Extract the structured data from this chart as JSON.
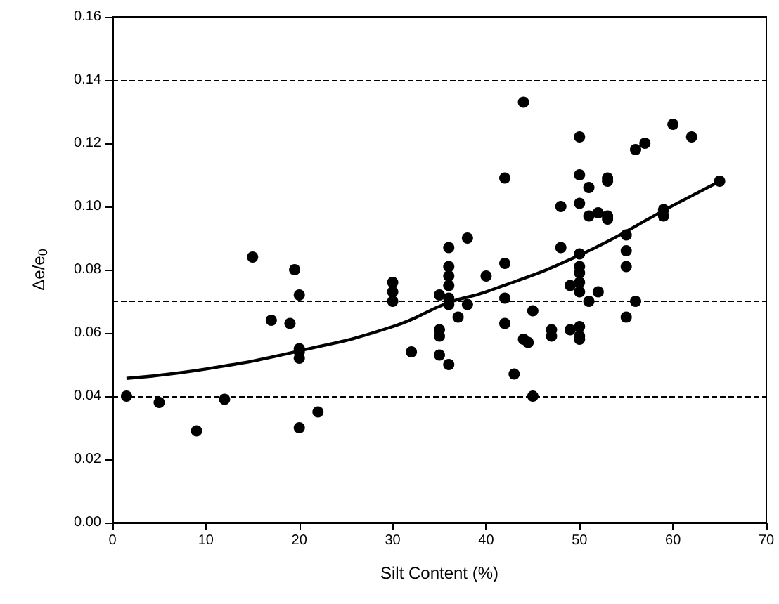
{
  "chart_data": {
    "type": "scatter",
    "xlabel": "Silt Content (%)",
    "ylabel": "Δe/e$_{0}$",
    "xlim": [
      0,
      70
    ],
    "xticks": [
      0,
      10,
      20,
      30,
      40,
      50,
      60,
      70
    ],
    "ylim": [
      0,
      0.16
    ],
    "yticks": [
      {
        "value": 0,
        "label": "0.00"
      },
      {
        "value": 0.02,
        "label": "0.02"
      },
      {
        "value": 0.04,
        "label": "0.04"
      },
      {
        "value": 0.06,
        "label": "0.06"
      },
      {
        "value": 0.08,
        "label": "0.08"
      },
      {
        "value": 0.1,
        "label": "0.10"
      },
      {
        "value": 0.12,
        "label": "0.12"
      },
      {
        "value": 0.14,
        "label": "0.14"
      },
      {
        "value": 0.16,
        "label": "0.16"
      }
    ],
    "grid": false,
    "marker": "circle",
    "ref_lines": [
      {
        "axis": "y",
        "value": 0.04,
        "line_style": "dashed",
        "color": "#000000"
      },
      {
        "axis": "y",
        "value": 0.07,
        "line_style": "dashed",
        "color": "#000000"
      },
      {
        "axis": "y",
        "value": 0.14,
        "line_style": "dashed",
        "color": "#000000"
      }
    ],
    "series": [
      {
        "type": "scatter",
        "color": "#000000",
        "x": [
          1.5,
          5,
          9,
          12,
          15,
          17,
          19,
          19.5,
          20,
          20,
          20,
          20,
          20,
          22,
          30,
          30,
          30,
          32,
          35,
          35,
          35,
          35,
          36,
          36,
          36,
          36,
          36,
          36,
          36,
          37,
          38,
          38,
          40,
          42,
          42,
          42,
          42,
          43,
          44,
          44,
          44.5,
          45,
          45,
          47,
          47,
          48,
          48,
          49,
          49,
          50,
          50,
          50,
          50,
          50,
          50,
          50,
          50,
          50,
          50,
          50,
          51,
          51,
          51,
          52,
          52,
          53,
          53,
          53,
          53,
          55,
          55,
          55,
          55,
          56,
          56,
          57,
          59,
          59,
          60,
          62,
          65
        ],
        "values": [
          0.04,
          0.038,
          0.029,
          0.039,
          0.084,
          0.064,
          0.063,
          0.08,
          0.072,
          0.055,
          0.054,
          0.052,
          0.03,
          0.035,
          0.076,
          0.073,
          0.07,
          0.054,
          0.072,
          0.061,
          0.059,
          0.053,
          0.087,
          0.081,
          0.078,
          0.075,
          0.071,
          0.069,
          0.05,
          0.065,
          0.09,
          0.069,
          0.078,
          0.109,
          0.082,
          0.071,
          0.063,
          0.047,
          0.133,
          0.058,
          0.057,
          0.067,
          0.04,
          0.061,
          0.059,
          0.1,
          0.087,
          0.075,
          0.061,
          0.122,
          0.11,
          0.101,
          0.085,
          0.081,
          0.079,
          0.076,
          0.073,
          0.062,
          0.059,
          0.058,
          0.106,
          0.097,
          0.07,
          0.098,
          0.073,
          0.109,
          0.108,
          0.097,
          0.096,
          0.091,
          0.086,
          0.081,
          0.065,
          0.118,
          0.07,
          0.12,
          0.099,
          0.097,
          0.126,
          0.122,
          0.108
        ]
      },
      {
        "type": "line",
        "color": "#000000",
        "marker": "none",
        "line_style": "solid",
        "x": [
          1.5,
          10,
          20,
          30,
          36,
          40,
          50,
          60,
          65
        ],
        "values": [
          0.0456,
          0.0486,
          0.0543,
          0.062,
          0.0696,
          0.073,
          0.0846,
          0.1003,
          0.108
        ]
      }
    ]
  }
}
